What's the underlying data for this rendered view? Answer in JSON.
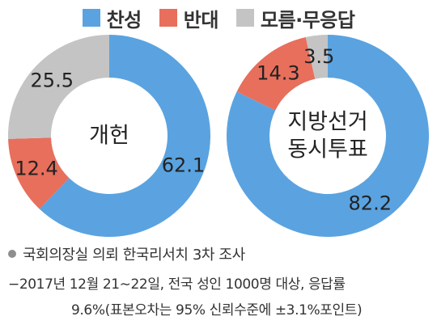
{
  "legend": {
    "items": [
      {
        "label": "찬성",
        "color": "#5aa3e0"
      },
      {
        "label": "반대",
        "color": "#e76f5c"
      },
      {
        "label": "모름·무응답",
        "color": "#c4c4c4"
      }
    ]
  },
  "chart_data": [
    {
      "type": "pie",
      "center_label": [
        "개헌"
      ],
      "categories": [
        "찬성",
        "반대",
        "모름·무응답"
      ],
      "values": [
        62.1,
        12.4,
        25.5
      ],
      "value_labels": [
        "62.1",
        "12.4",
        "25.5"
      ]
    },
    {
      "type": "pie",
      "center_label": [
        "지방선거",
        "동시투표"
      ],
      "categories": [
        "찬성",
        "반대",
        "모름·무응답"
      ],
      "values": [
        82.2,
        14.3,
        3.5
      ],
      "value_labels": [
        "82.2",
        "14.3",
        "3.5"
      ]
    }
  ],
  "notes": {
    "source": "국회의장실 의뢰 한국리서치 3차 조사",
    "line1": "−2017년 12월 21∼22일, 전국 성인 1000명 대상, 응답률",
    "line2": "9.6%(표본오차는 95% 신뢰수준에 ±3.1%포인트)"
  }
}
